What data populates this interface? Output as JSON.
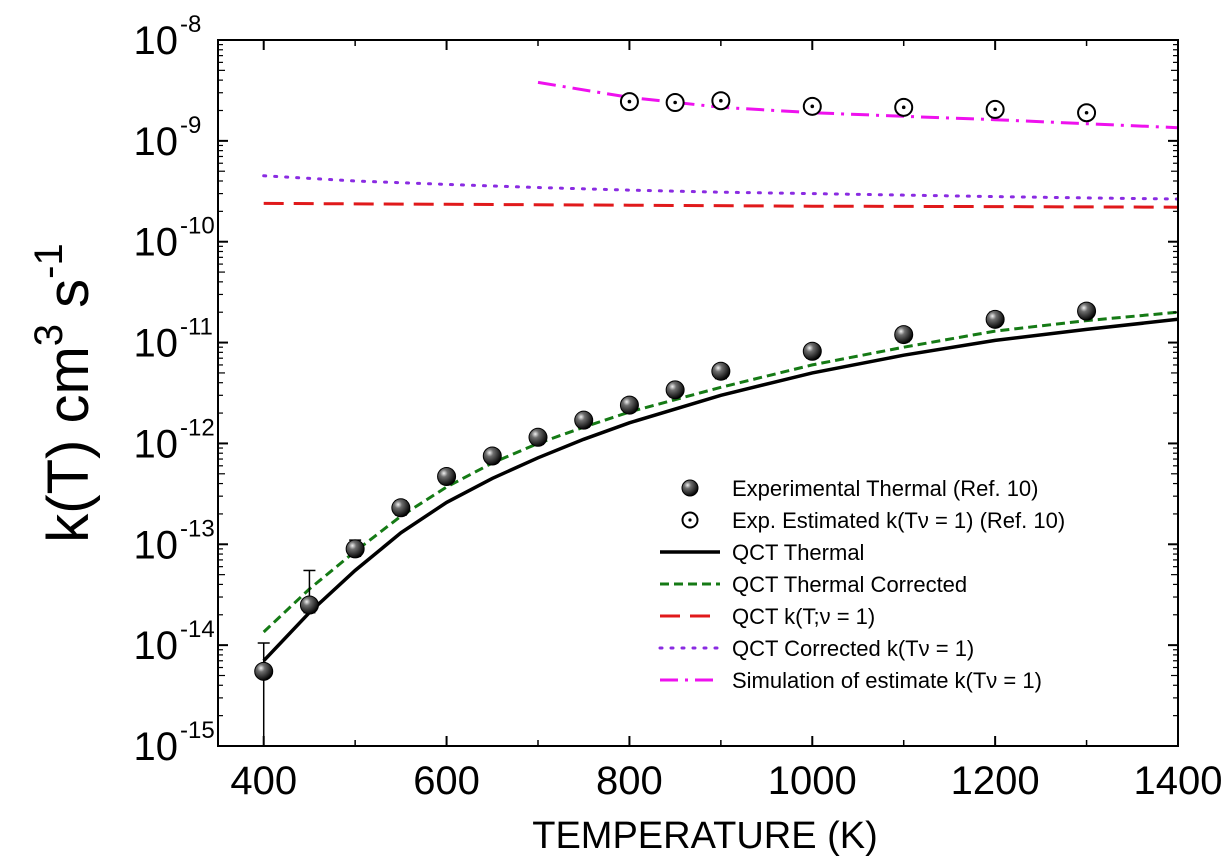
{
  "chart_data": {
    "type": "scatter",
    "xlabel": "TEMPERATURE (K)",
    "ylabel_parts": [
      "k(T) cm",
      "3",
      " s",
      "-1"
    ],
    "xlim": [
      350,
      1400
    ],
    "ylim_log10": [
      -15,
      -8
    ],
    "y_scale": "log",
    "grid": false,
    "legend_position": "bottom-right",
    "x_ticks": [
      400,
      600,
      800,
      1000,
      1200,
      1400
    ],
    "y_ticks": [
      {
        "base": "10",
        "exp": "-15"
      },
      {
        "base": "10",
        "exp": "-14"
      },
      {
        "base": "10",
        "exp": "-13"
      },
      {
        "base": "10",
        "exp": "-12"
      },
      {
        "base": "10",
        "exp": "-11"
      },
      {
        "base": "10",
        "exp": "-10"
      },
      {
        "base": "10",
        "exp": "-9"
      },
      {
        "base": "10",
        "exp": "-8"
      }
    ],
    "series": [
      {
        "name": "Experimental Thermal (Ref. 10)",
        "style": "filled-sphere",
        "color": "#000000",
        "x": [
          400,
          450,
          500,
          550,
          600,
          650,
          700,
          750,
          800,
          850,
          900,
          1000,
          1100,
          1200,
          1300
        ],
        "y": [
          5.5e-15,
          2.5e-14,
          9e-14,
          2.3e-13,
          4.7e-13,
          7.5e-13,
          1.15e-12,
          1.7e-12,
          2.4e-12,
          3.4e-12,
          5.2e-12,
          8.2e-12,
          1.2e-11,
          1.7e-11,
          2.05e-11
        ],
        "y_err_upper": [
          1.05e-14,
          5.5e-14,
          1.1e-13,
          2.7e-13,
          5.5e-13,
          8.6e-13,
          1.32e-12,
          1.95e-12,
          2.8e-12,
          3.9e-12,
          6e-12,
          9.5e-12,
          1.4e-11,
          2e-11,
          2.4e-11
        ],
        "y_err_lower": [
          1e-15,
          2.1e-14,
          7.6e-14,
          1.95e-13,
          4e-13,
          6.4e-13,
          9.8e-13,
          1.45e-12,
          2.05e-12,
          2.9e-12,
          4.4e-12,
          7e-12,
          1.02e-11,
          1.45e-11,
          1.75e-11
        ]
      },
      {
        "name": "Exp. Estimated k(Tν = 1) (Ref. 10)",
        "style": "open-circle-dot",
        "color": "#000000",
        "x": [
          800,
          850,
          900,
          1000,
          1100,
          1200,
          1300
        ],
        "y": [
          2.45e-09,
          2.4e-09,
          2.5e-09,
          2.2e-09,
          2.15e-09,
          2.05e-09,
          1.9e-09
        ]
      },
      {
        "name": "QCT Thermal",
        "style": "solid",
        "color": "#000000",
        "x": [
          400,
          450,
          500,
          550,
          600,
          650,
          700,
          750,
          800,
          900,
          1000,
          1100,
          1200,
          1300,
          1400
        ],
        "y": [
          7e-15,
          2.1e-14,
          5.5e-14,
          1.3e-13,
          2.6e-13,
          4.5e-13,
          7.2e-13,
          1.1e-12,
          1.6e-12,
          3e-12,
          5e-12,
          7.5e-12,
          1.05e-11,
          1.35e-11,
          1.7e-11
        ]
      },
      {
        "name": "QCT Thermal Corrected",
        "style": "dashed",
        "color": "#157a15",
        "x": [
          400,
          450,
          500,
          550,
          600,
          650,
          700,
          750,
          800,
          900,
          1000,
          1100,
          1200,
          1300,
          1400
        ],
        "y": [
          1.35e-14,
          3.6e-14,
          8.5e-14,
          1.9e-13,
          3.7e-13,
          6.4e-13,
          1e-12,
          1.45e-12,
          2.05e-12,
          3.6e-12,
          6e-12,
          9e-12,
          1.3e-11,
          1.65e-11,
          2e-11
        ]
      },
      {
        "name": "QCT k(T;ν = 1)",
        "style": "long-dash",
        "color": "#e0191b",
        "x": [
          400,
          600,
          800,
          1000,
          1200,
          1400
        ],
        "y": [
          2.4e-10,
          2.35e-10,
          2.3e-10,
          2.25e-10,
          2.23e-10,
          2.2e-10
        ]
      },
      {
        "name": "QCT Corrected k(Tν = 1)",
        "style": "dotted",
        "color": "#8a2be2",
        "x": [
          400,
          500,
          600,
          700,
          800,
          900,
          1000,
          1100,
          1200,
          1300,
          1400
        ],
        "y": [
          4.5e-10,
          4e-10,
          3.7e-10,
          3.45e-10,
          3.25e-10,
          3.1e-10,
          3e-10,
          2.9e-10,
          2.8e-10,
          2.72e-10,
          2.65e-10
        ]
      },
      {
        "name": "Simulation of estimate k(Tν = 1)",
        "style": "dash-dot",
        "color": "#ee11ee",
        "x": [
          700,
          800,
          900,
          1000,
          1100,
          1200,
          1300,
          1400
        ],
        "y": [
          3.8e-09,
          2.7e-09,
          2.15e-09,
          1.9e-09,
          1.75e-09,
          1.62e-09,
          1.48e-09,
          1.35e-09
        ]
      }
    ]
  }
}
